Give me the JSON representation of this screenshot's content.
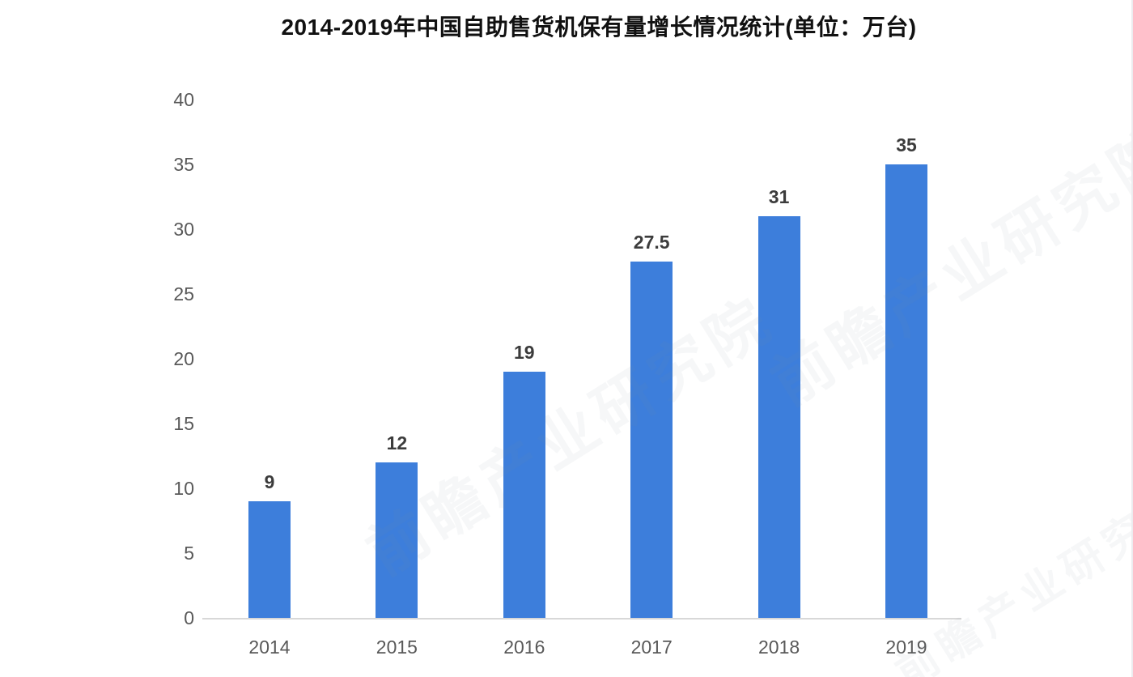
{
  "chart_data": {
    "type": "bar",
    "title": "2014-2019年中国自助售货机保有量增长情况统计(单位：万台)",
    "categories": [
      "2014",
      "2015",
      "2016",
      "2017",
      "2018",
      "2019"
    ],
    "values": [
      9,
      12,
      19,
      27.5,
      31,
      35
    ],
    "value_labels": [
      "9",
      "12",
      "19",
      "27.5",
      "31",
      "35"
    ],
    "unit": "万台",
    "xlabel": "",
    "ylabel": "",
    "ylim": [
      0,
      40
    ],
    "yticks": [
      0,
      5,
      10,
      15,
      20,
      25,
      30,
      35,
      40
    ],
    "grid": false,
    "legend": "none"
  },
  "watermark": {
    "text": "前瞻产业研究院"
  },
  "colors": {
    "bar": "#3D7EDB",
    "axis_line": "#D8D8D8",
    "tick_label": "#595959",
    "value_label": "#3C3C3C",
    "title": "#111111",
    "watermark": "rgba(125, 135, 155, 0.07)"
  }
}
